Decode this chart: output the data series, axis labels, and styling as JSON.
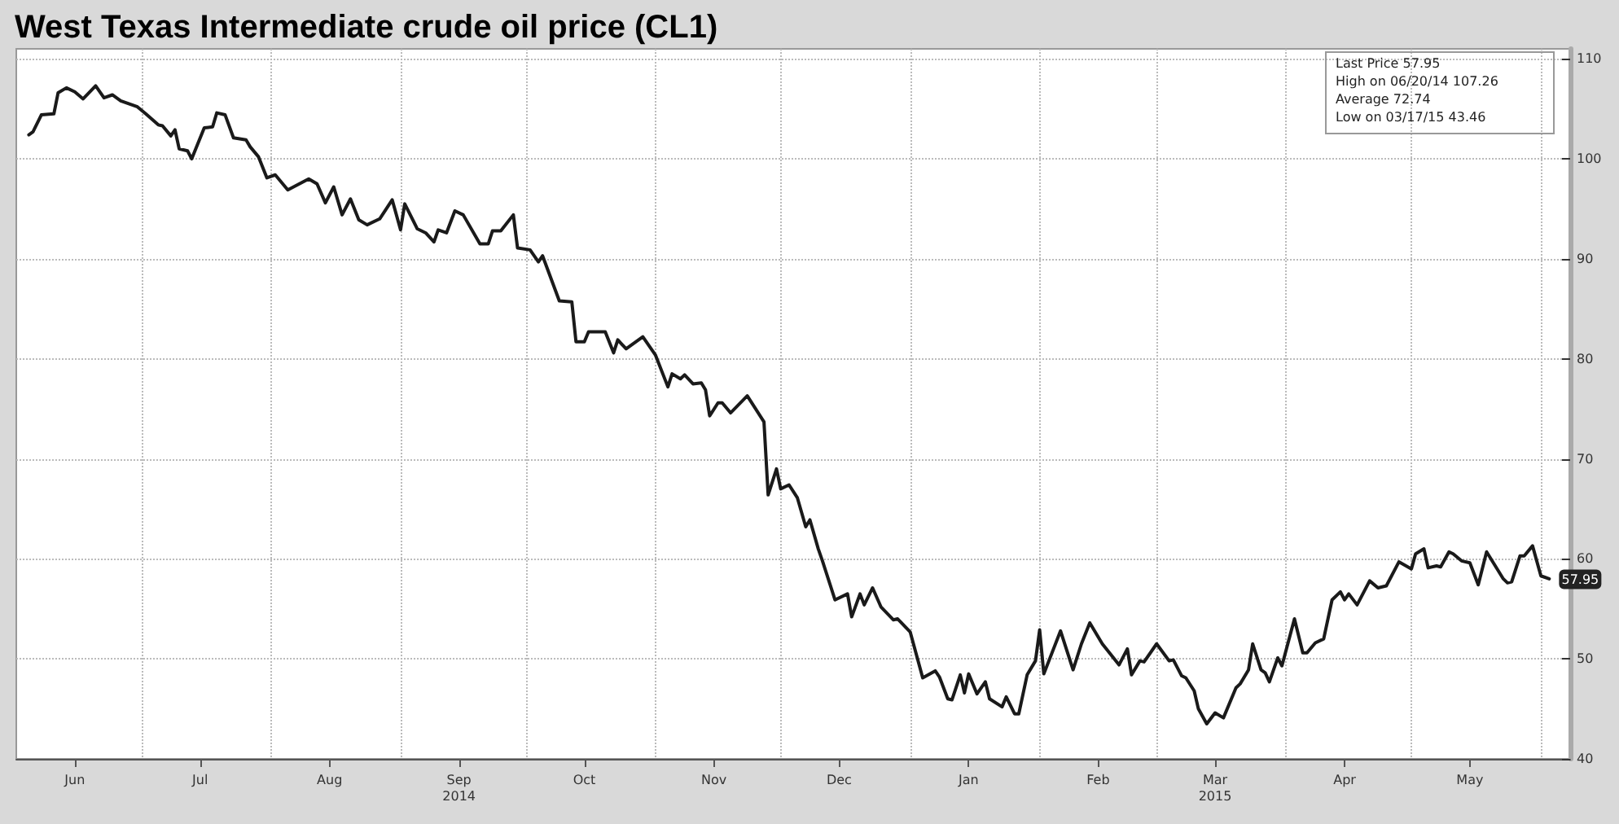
{
  "chart_data": {
    "type": "line",
    "title": "West Texas Intermediate crude oil price (CL1)",
    "x": [
      "2014-06-04",
      "2014-06-05",
      "2014-06-07",
      "2014-06-10",
      "2014-06-11",
      "2014-06-13",
      "2014-06-15",
      "2014-06-17",
      "2014-06-20",
      "2014-06-22",
      "2014-06-24",
      "2014-06-26",
      "2014-06-30",
      "2014-07-02",
      "2014-07-05",
      "2014-07-06",
      "2014-07-08",
      "2014-07-09",
      "2014-07-10",
      "2014-07-12",
      "2014-07-13",
      "2014-07-16",
      "2014-07-18",
      "2014-07-19",
      "2014-07-21",
      "2014-07-23",
      "2014-07-26",
      "2014-07-27",
      "2014-07-29",
      "2014-07-31",
      "2014-08-02",
      "2014-08-05",
      "2014-08-10",
      "2014-08-12",
      "2014-08-14",
      "2014-08-16",
      "2014-08-18",
      "2014-08-20",
      "2014-08-22",
      "2014-08-24",
      "2014-08-27",
      "2014-08-30",
      "2014-09-01",
      "2014-09-02",
      "2014-09-05",
      "2014-09-07",
      "2014-09-09",
      "2014-09-10",
      "2014-09-12",
      "2014-09-14",
      "2014-09-16",
      "2014-09-20",
      "2014-09-22",
      "2014-09-23",
      "2014-09-25",
      "2014-09-28",
      "2014-09-29",
      "2014-10-02",
      "2014-10-04",
      "2014-10-05",
      "2014-10-09",
      "2014-10-12",
      "2014-10-13",
      "2014-10-15",
      "2014-10-16",
      "2014-10-20",
      "2014-10-22",
      "2014-10-23",
      "2014-10-25",
      "2014-10-29",
      "2014-11-01",
      "2014-11-04",
      "2014-11-05",
      "2014-11-07",
      "2014-11-08",
      "2014-11-10",
      "2014-11-12",
      "2014-11-13",
      "2014-11-14",
      "2014-11-16",
      "2014-11-17",
      "2014-11-19",
      "2014-11-23",
      "2014-11-27",
      "2014-11-28",
      "2014-11-30",
      "2014-12-01",
      "2014-12-03",
      "2014-12-05",
      "2014-12-07",
      "2014-12-08",
      "2014-12-10",
      "2014-12-11",
      "2014-12-14",
      "2014-12-17",
      "2014-12-18",
      "2014-12-20",
      "2014-12-21",
      "2014-12-23",
      "2014-12-25",
      "2014-12-28",
      "2014-12-29",
      "2015-01-01",
      "2015-01-04",
      "2015-01-07",
      "2015-01-08",
      "2015-01-10",
      "2015-01-11",
      "2015-01-13",
      "2015-01-14",
      "2015-01-15",
      "2015-01-17",
      "2015-01-19",
      "2015-01-20",
      "2015-01-23",
      "2015-01-24",
      "2015-01-26",
      "2015-01-27",
      "2015-01-29",
      "2015-01-31",
      "2015-02-01",
      "2015-02-02",
      "2015-02-06",
      "2015-02-09",
      "2015-02-11",
      "2015-02-13",
      "2015-02-16",
      "2015-02-20",
      "2015-02-22",
      "2015-02-23",
      "2015-02-25",
      "2015-02-26",
      "2015-03-01",
      "2015-03-04",
      "2015-03-05",
      "2015-03-07",
      "2015-03-08",
      "2015-03-10",
      "2015-03-11",
      "2015-03-13",
      "2015-03-15",
      "2015-03-17",
      "2015-03-20",
      "2015-03-21",
      "2015-03-23",
      "2015-03-24",
      "2015-03-26",
      "2015-03-27",
      "2015-03-28",
      "2015-03-30",
      "2015-03-31",
      "2015-04-03",
      "2015-04-05",
      "2015-04-06",
      "2015-04-08",
      "2015-04-10",
      "2015-04-12",
      "2015-04-14",
      "2015-04-15",
      "2015-04-16",
      "2015-04-18",
      "2015-04-21",
      "2015-04-23",
      "2015-04-25",
      "2015-04-28",
      "2015-05-01",
      "2015-05-02",
      "2015-05-04",
      "2015-05-05",
      "2015-05-07",
      "2015-05-08",
      "2015-05-10",
      "2015-05-11",
      "2015-05-13",
      "2015-05-15",
      "2015-05-17",
      "2015-05-19",
      "2015-05-23",
      "2015-05-24",
      "2015-05-25",
      "2015-05-27",
      "2015-05-28",
      "2015-05-30",
      "2015-06-01",
      "2015-06-03"
    ],
    "series": [
      {
        "color": "#1a1a1a",
        "values": [
          102.4,
          102.7,
          104.4,
          104.5,
          106.6,
          107.1,
          106.7,
          106.0,
          107.3,
          106.1,
          106.4,
          105.8,
          105.2,
          104.5,
          103.4,
          103.3,
          102.3,
          102.9,
          101.0,
          100.8,
          100.0,
          103.1,
          103.2,
          104.6,
          104.4,
          102.1,
          101.9,
          101.2,
          100.2,
          98.1,
          98.4,
          96.9,
          98.0,
          97.5,
          95.6,
          97.2,
          94.4,
          96.0,
          93.9,
          93.4,
          94.0,
          95.9,
          92.9,
          95.5,
          93.0,
          92.6,
          91.7,
          92.9,
          92.6,
          94.8,
          94.4,
          91.5,
          91.5,
          92.8,
          92.8,
          94.4,
          91.1,
          90.9,
          89.7,
          90.3,
          85.8,
          85.7,
          81.7,
          81.7,
          82.7,
          82.7,
          80.6,
          81.9,
          81.0,
          82.2,
          80.4,
          77.2,
          78.5,
          78.0,
          78.4,
          77.5,
          77.6,
          76.9,
          74.3,
          75.6,
          75.6,
          74.6,
          76.3,
          73.7,
          66.4,
          69.0,
          67.0,
          67.4,
          66.1,
          63.2,
          63.9,
          61.0,
          59.8,
          55.9,
          56.5,
          54.2,
          56.5,
          55.4,
          57.1,
          55.2,
          53.9,
          54.0,
          52.7,
          48.1,
          48.8,
          48.2,
          46.0,
          45.9,
          48.4,
          46.6,
          48.5,
          46.5,
          47.7,
          46.0,
          45.2,
          46.2,
          44.5,
          44.5,
          48.4,
          49.8,
          52.9,
          48.5,
          52.8,
          48.9,
          51.5,
          53.6,
          51.5,
          49.4,
          51.0,
          48.4,
          49.8,
          49.7,
          51.5,
          49.8,
          49.9,
          48.3,
          48.1,
          46.8,
          45.0,
          43.5,
          44.6,
          44.1,
          47.1,
          47.5,
          48.9,
          51.5,
          48.9,
          48.6,
          47.7,
          50.1,
          49.3,
          54.0,
          50.6,
          50.6,
          51.6,
          52.0,
          55.9,
          56.7,
          55.9,
          56.5,
          55.4,
          57.8,
          57.1,
          57.3,
          59.7,
          59.0,
          60.5,
          61.0,
          59.1,
          59.3,
          59.2,
          60.7,
          60.5,
          59.8,
          59.6,
          57.4,
          60.7,
          58.0,
          57.6,
          57.7,
          60.3,
          60.3,
          61.3,
          58.3,
          58.0
        ]
      }
    ],
    "xlim": [
      "2014-06-01",
      "2015-06-08"
    ],
    "xticks": [
      {
        "value": "2014-06-15",
        "label": "Jun"
      },
      {
        "value": "2014-07-01",
        "label": null
      },
      {
        "value": "2014-07-15",
        "label": "Jul"
      },
      {
        "value": "2014-08-01",
        "label": null
      },
      {
        "value": "2014-08-15",
        "label": "Aug"
      },
      {
        "value": "2014-09-01",
        "label": null
      },
      {
        "value": "2014-09-15",
        "label": "Sep\n2014"
      },
      {
        "value": "2014-10-01",
        "label": null
      },
      {
        "value": "2014-10-15",
        "label": "Oct"
      },
      {
        "value": "2014-11-01",
        "label": null
      },
      {
        "value": "2014-11-15",
        "label": "Nov"
      },
      {
        "value": "2014-12-01",
        "label": null
      },
      {
        "value": "2014-12-15",
        "label": "Dec"
      },
      {
        "value": "2015-01-01",
        "label": null
      },
      {
        "value": "2015-01-15",
        "label": "Jan"
      },
      {
        "value": "2015-02-01",
        "label": null
      },
      {
        "value": "2015-02-15",
        "label": "Feb"
      },
      {
        "value": "2015-03-01",
        "label": null
      },
      {
        "value": "2015-03-15",
        "label": "Mar\n2015"
      },
      {
        "value": "2015-04-01",
        "label": null
      },
      {
        "value": "2015-04-15",
        "label": "Apr"
      },
      {
        "value": "2015-05-01",
        "label": null
      },
      {
        "value": "2015-05-15",
        "label": "May"
      },
      {
        "value": "2015-06-01",
        "label": null
      }
    ],
    "ylim": [
      40,
      111
    ],
    "yticks": [
      40,
      50,
      60,
      70,
      80,
      90,
      100,
      110
    ],
    "grid": true,
    "marker": "none",
    "line_style": "solid",
    "annotations": [
      "Last Price 57.95",
      "High on 06/20/14 107.26",
      "Average 72.74",
      "Low on 03/17/15 43.46",
      {
        "text": "57.95",
        "x": "2015-06-03",
        "y": 57.95
      }
    ]
  }
}
